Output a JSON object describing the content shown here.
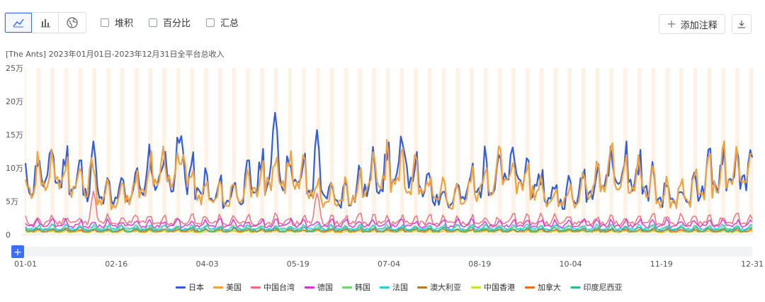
{
  "toolbar": {
    "view_buttons": [
      {
        "icon": "line-chart-icon",
        "active": true
      },
      {
        "icon": "bar-chart-icon",
        "active": false
      },
      {
        "icon": "globe-icon",
        "active": false
      }
    ],
    "checkboxes": [
      {
        "label": "堆积",
        "checked": false
      },
      {
        "label": "百分比",
        "checked": false
      },
      {
        "label": "汇总",
        "checked": false
      }
    ],
    "add_annotation_label": "添加注释",
    "download_icon": "download-icon"
  },
  "colors": {
    "accent": "#3b6ff6",
    "holiday_band": "#fde8cf"
  },
  "chart_data": {
    "type": "line",
    "title": "[The Ants]  2023年01月01日-2023年12月31日全平台总收入",
    "x_ticks": [
      "01-01",
      "02-16",
      "04-03",
      "05-19",
      "07-04",
      "08-19",
      "10-04",
      "11-19",
      "12-31"
    ],
    "y_ticks": [
      "0",
      "5万",
      "10万",
      "15万",
      "20万",
      "25万"
    ],
    "ylim": [
      0,
      250000
    ],
    "x_range": [
      "2023-01-01",
      "2023-12-31"
    ],
    "weekend_bands": true,
    "grid": false,
    "legend_position": "bottom",
    "series": [
      {
        "name": "日本",
        "color": "#2f5ee0",
        "approx_mean": 75000,
        "peaks": [
          [
            "2023-02-04",
            140000
          ],
          [
            "2023-03-20",
            148000
          ],
          [
            "2023-05-06",
            183000
          ],
          [
            "2023-05-27",
            157000
          ],
          [
            "2023-07-10",
            120000
          ]
        ]
      },
      {
        "name": "美国",
        "color": "#f5a23c",
        "approx_mean": 72000,
        "peaks": [
          [
            "2023-02-03",
            115000
          ],
          [
            "2023-03-21",
            120000
          ],
          [
            "2023-05-06",
            100000
          ]
        ]
      },
      {
        "name": "中国台湾",
        "color": "#f06b7a",
        "approx_mean": 20000,
        "peaks": [
          [
            "2023-02-04",
            65000
          ],
          [
            "2023-05-27",
            62000
          ]
        ]
      },
      {
        "name": "德国",
        "color": "#d633d6",
        "approx_mean": 15000
      },
      {
        "name": "韩国",
        "color": "#6fd66f",
        "approx_mean": 9000
      },
      {
        "name": "法国",
        "color": "#35c9e0",
        "approx_mean": 10000
      },
      {
        "name": "澳大利亚",
        "color": "#b67a2e",
        "approx_mean": 5000
      },
      {
        "name": "中国香港",
        "color": "#c9e03a",
        "approx_mean": 4000
      },
      {
        "name": "加拿大",
        "color": "#f06a16",
        "approx_mean": 6000
      },
      {
        "name": "印度尼西亚",
        "color": "#2fb89a",
        "approx_mean": 7000
      }
    ]
  }
}
